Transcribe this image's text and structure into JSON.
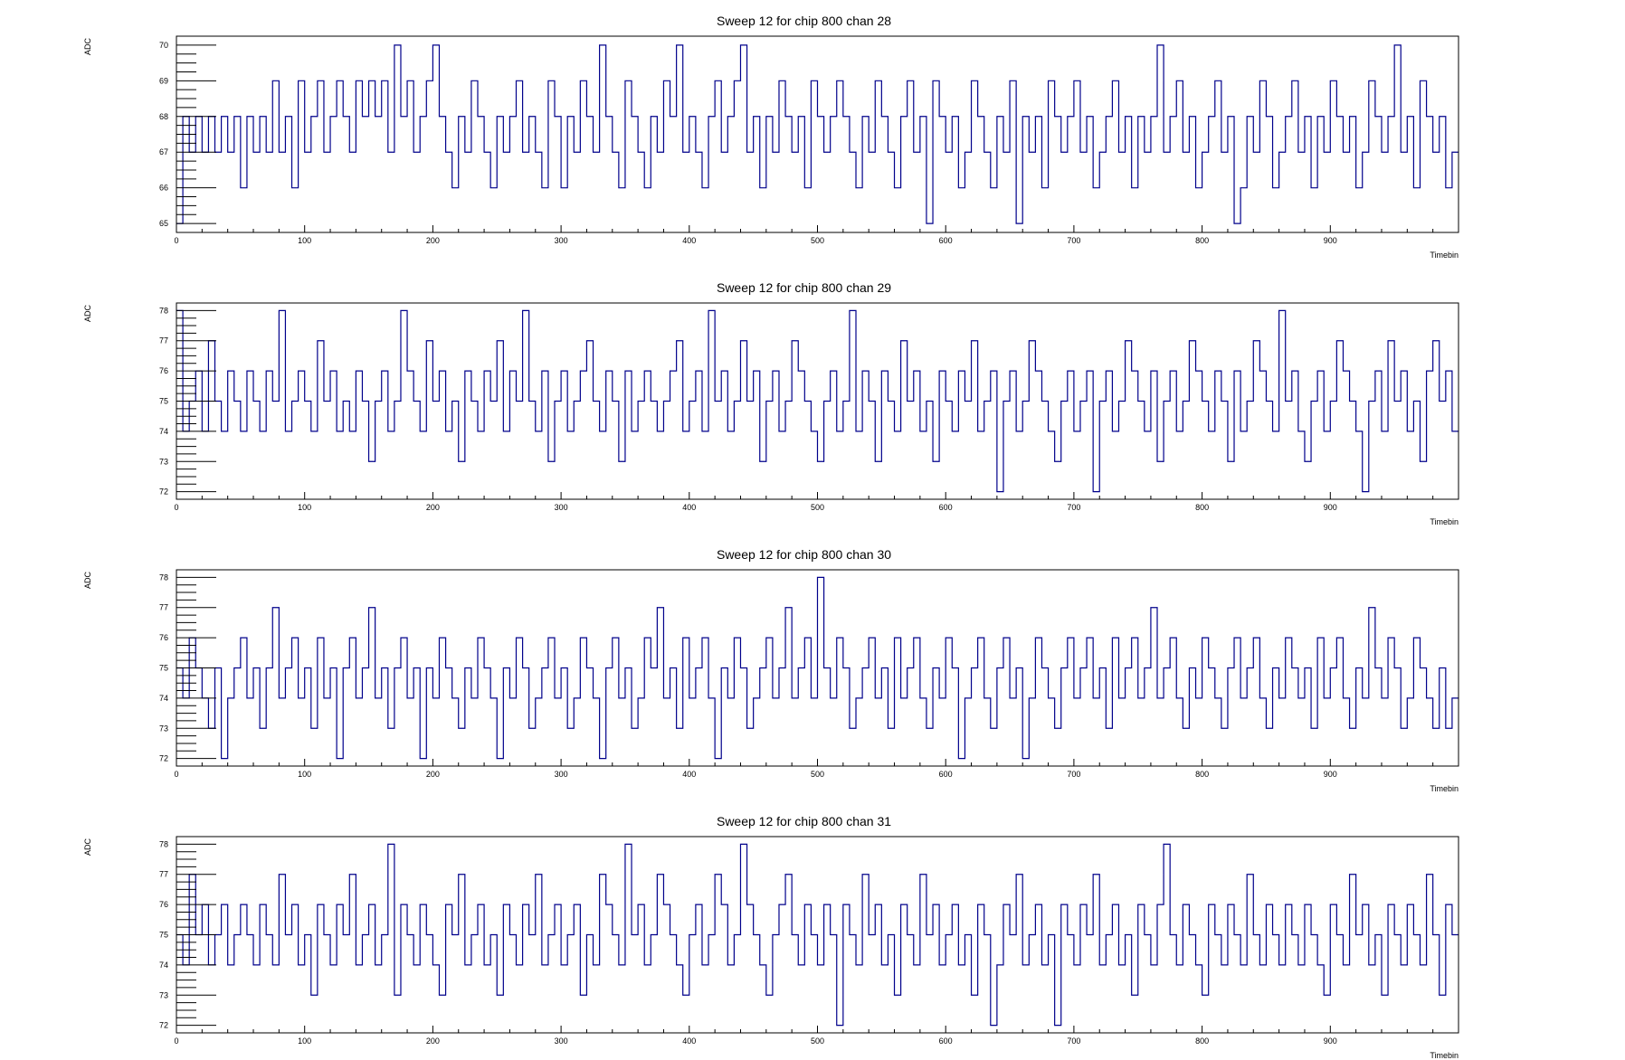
{
  "page": {
    "background": "#ffffff",
    "line_color": "#00008b",
    "frame_color": "#000000"
  },
  "chart_data": [
    {
      "type": "line",
      "style": "step",
      "title": "Sweep 12 for chip 800 chan 28",
      "xlabel": "Timebin",
      "ylabel": "ADC",
      "xlim": [
        0,
        1000
      ],
      "ylim": [
        64.75,
        70.25
      ],
      "xticks": [
        0,
        100,
        200,
        300,
        400,
        500,
        600,
        700,
        800,
        900
      ],
      "yticks": [
        65,
        66,
        67,
        68,
        69,
        70
      ],
      "grid": false,
      "series": [
        {
          "values": [
            65,
            68,
            67,
            68,
            67,
            68,
            67,
            68,
            67,
            68,
            66,
            68,
            67,
            68,
            67,
            69,
            67,
            68,
            66,
            69,
            67,
            68,
            69,
            67,
            68,
            69,
            68,
            67,
            69,
            68,
            69,
            68,
            69,
            67,
            70,
            68,
            69,
            67,
            68,
            69,
            70,
            68,
            67,
            66,
            68,
            67,
            69,
            68,
            67,
            66,
            68,
            67,
            68,
            69,
            67,
            68,
            67,
            66,
            69,
            68,
            66,
            68,
            67,
            69,
            68,
            67,
            70,
            68,
            67,
            66,
            69,
            68,
            67,
            66,
            68,
            67,
            69,
            68,
            70,
            67,
            68,
            67,
            66,
            68,
            69,
            67,
            68,
            69,
            70,
            67,
            68,
            66,
            68,
            67,
            69,
            68,
            67,
            68,
            66,
            69,
            68,
            67,
            68,
            69,
            68,
            67,
            66,
            68,
            67,
            69,
            68,
            67,
            66,
            68,
            69,
            67,
            68,
            65,
            69,
            68,
            67,
            68,
            66,
            67,
            69,
            68,
            67,
            66,
            68,
            67,
            69,
            65,
            68,
            67,
            68,
            66,
            69,
            68,
            67,
            68,
            69,
            67,
            68,
            66,
            67,
            68,
            69,
            67,
            68,
            66,
            68,
            67,
            68,
            70,
            67,
            68,
            69,
            67,
            68,
            66,
            67,
            68,
            69,
            67,
            68,
            65,
            66,
            68,
            67,
            69,
            68,
            66,
            67,
            68,
            69,
            67,
            68,
            66,
            68,
            67,
            69,
            68,
            67,
            68,
            66,
            67,
            69,
            68,
            67,
            68,
            70,
            67,
            68,
            66,
            69,
            68,
            67,
            68,
            66,
            67
          ]
        }
      ]
    },
    {
      "type": "line",
      "style": "step",
      "title": "Sweep 12 for chip 800 chan 29",
      "xlabel": "Timebin",
      "ylabel": "ADC",
      "xlim": [
        0,
        1000
      ],
      "ylim": [
        71.75,
        78.25
      ],
      "xticks": [
        0,
        100,
        200,
        300,
        400,
        500,
        600,
        700,
        800,
        900
      ],
      "yticks": [
        72,
        73,
        74,
        75,
        76,
        77,
        78
      ],
      "grid": false,
      "series": [
        {
          "values": [
            78,
            74,
            75,
            76,
            74,
            77,
            75,
            74,
            76,
            75,
            74,
            76,
            75,
            74,
            76,
            75,
            78,
            74,
            75,
            76,
            75,
            74,
            77,
            75,
            76,
            74,
            75,
            74,
            76,
            75,
            73,
            75,
            76,
            74,
            75,
            78,
            76,
            75,
            74,
            77,
            75,
            76,
            74,
            75,
            73,
            76,
            75,
            74,
            76,
            75,
            77,
            74,
            76,
            75,
            78,
            75,
            74,
            76,
            73,
            75,
            76,
            74,
            75,
            76,
            77,
            75,
            74,
            76,
            75,
            73,
            76,
            74,
            75,
            76,
            75,
            74,
            75,
            76,
            77,
            74,
            75,
            76,
            74,
            78,
            75,
            76,
            74,
            75,
            77,
            75,
            76,
            73,
            75,
            76,
            74,
            75,
            77,
            76,
            75,
            74,
            73,
            75,
            76,
            74,
            75,
            78,
            74,
            76,
            75,
            73,
            76,
            75,
            74,
            77,
            75,
            76,
            74,
            75,
            73,
            76,
            75,
            74,
            76,
            75,
            77,
            74,
            75,
            76,
            72,
            75,
            76,
            74,
            75,
            77,
            76,
            75,
            74,
            73,
            75,
            76,
            74,
            75,
            76,
            72,
            75,
            76,
            74,
            75,
            77,
            76,
            75,
            74,
            76,
            73,
            75,
            76,
            74,
            75,
            77,
            76,
            75,
            74,
            76,
            75,
            73,
            76,
            74,
            75,
            77,
            76,
            75,
            74,
            78,
            75,
            76,
            74,
            73,
            75,
            76,
            74,
            75,
            77,
            76,
            75,
            74,
            72,
            75,
            76,
            74,
            77,
            75,
            76,
            74,
            75,
            73,
            76,
            77,
            75,
            76,
            74
          ]
        }
      ]
    },
    {
      "type": "line",
      "style": "step",
      "title": "Sweep 12 for chip 800 chan 30",
      "xlabel": "Timebin",
      "ylabel": "ADC",
      "xlim": [
        0,
        1000
      ],
      "ylim": [
        71.75,
        78.25
      ],
      "xticks": [
        0,
        100,
        200,
        300,
        400,
        500,
        600,
        700,
        800,
        900
      ],
      "yticks": [
        72,
        73,
        74,
        75,
        76,
        77,
        78
      ],
      "grid": false,
      "series": [
        {
          "values": [
            75,
            74,
            76,
            75,
            74,
            73,
            75,
            72,
            74,
            75,
            76,
            74,
            75,
            73,
            75,
            77,
            74,
            75,
            76,
            74,
            75,
            73,
            76,
            74,
            75,
            72,
            75,
            76,
            74,
            75,
            77,
            74,
            75,
            73,
            75,
            76,
            74,
            75,
            72,
            75,
            74,
            76,
            75,
            74,
            73,
            75,
            74,
            76,
            75,
            74,
            72,
            75,
            74,
            76,
            75,
            73,
            74,
            75,
            76,
            74,
            75,
            73,
            74,
            76,
            75,
            74,
            72,
            75,
            76,
            74,
            75,
            73,
            74,
            76,
            75,
            77,
            74,
            75,
            73,
            76,
            74,
            75,
            76,
            74,
            72,
            75,
            74,
            76,
            75,
            73,
            74,
            75,
            76,
            74,
            75,
            77,
            74,
            75,
            76,
            74,
            78,
            75,
            74,
            76,
            75,
            73,
            74,
            75,
            76,
            74,
            75,
            73,
            76,
            74,
            75,
            76,
            74,
            73,
            75,
            74,
            76,
            75,
            72,
            74,
            75,
            76,
            74,
            73,
            75,
            76,
            74,
            75,
            72,
            74,
            76,
            75,
            74,
            73,
            75,
            76,
            74,
            75,
            76,
            74,
            75,
            73,
            76,
            74,
            75,
            76,
            74,
            75,
            77,
            74,
            75,
            76,
            74,
            73,
            75,
            74,
            76,
            75,
            74,
            73,
            75,
            76,
            74,
            75,
            76,
            74,
            73,
            75,
            74,
            76,
            75,
            74,
            75,
            73,
            76,
            74,
            75,
            76,
            74,
            73,
            75,
            74,
            77,
            75,
            74,
            76,
            75,
            73,
            74,
            76,
            75,
            74,
            73,
            75,
            73,
            74
          ]
        }
      ]
    },
    {
      "type": "line",
      "style": "step",
      "title": "Sweep 12 for chip 800 chan 31",
      "xlabel": "Timebin",
      "ylabel": "ADC",
      "xlim": [
        0,
        1000
      ],
      "ylim": [
        71.75,
        78.25
      ],
      "xticks": [
        0,
        100,
        200,
        300,
        400,
        500,
        600,
        700,
        800,
        900
      ],
      "yticks": [
        72,
        73,
        74,
        75,
        76,
        77,
        78
      ],
      "grid": false,
      "series": [
        {
          "values": [
            75,
            74,
            77,
            75,
            76,
            74,
            75,
            76,
            74,
            75,
            76,
            75,
            74,
            76,
            75,
            74,
            77,
            75,
            76,
            74,
            75,
            73,
            76,
            75,
            74,
            76,
            75,
            77,
            74,
            75,
            76,
            74,
            75,
            78,
            73,
            76,
            75,
            74,
            76,
            75,
            74,
            73,
            76,
            75,
            77,
            74,
            75,
            76,
            74,
            75,
            73,
            76,
            75,
            74,
            76,
            75,
            77,
            74,
            75,
            76,
            74,
            75,
            76,
            73,
            75,
            74,
            77,
            76,
            75,
            74,
            78,
            75,
            76,
            74,
            75,
            77,
            76,
            75,
            74,
            73,
            75,
            76,
            74,
            75,
            77,
            76,
            74,
            75,
            78,
            76,
            75,
            74,
            73,
            75,
            76,
            77,
            75,
            74,
            76,
            75,
            74,
            76,
            75,
            72,
            76,
            75,
            74,
            77,
            75,
            76,
            74,
            75,
            73,
            76,
            75,
            74,
            77,
            75,
            76,
            74,
            75,
            76,
            74,
            75,
            73,
            76,
            75,
            72,
            74,
            76,
            75,
            77,
            74,
            75,
            76,
            74,
            75,
            72,
            76,
            75,
            74,
            76,
            75,
            77,
            74,
            75,
            76,
            74,
            75,
            73,
            76,
            75,
            74,
            76,
            78,
            75,
            74,
            76,
            75,
            74,
            73,
            76,
            75,
            74,
            76,
            75,
            74,
            77,
            75,
            74,
            76,
            75,
            74,
            76,
            75,
            74,
            76,
            75,
            74,
            73,
            76,
            75,
            74,
            77,
            75,
            76,
            74,
            75,
            73,
            76,
            75,
            74,
            76,
            75,
            74,
            77,
            75,
            73,
            76,
            75
          ]
        }
      ]
    }
  ]
}
